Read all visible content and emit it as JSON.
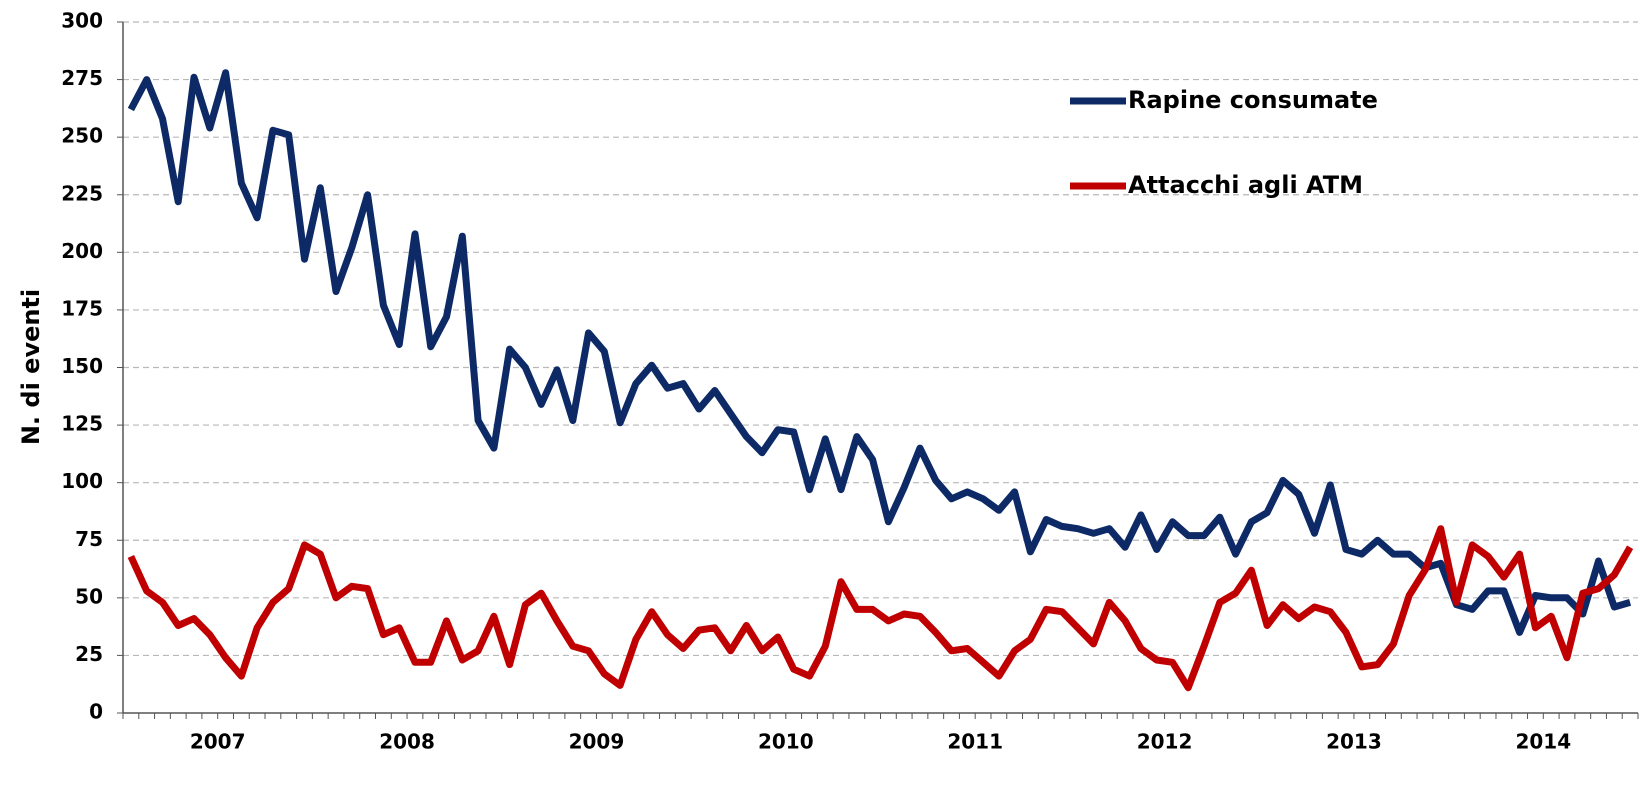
{
  "chart_data": {
    "type": "line",
    "y_label": "N. di eventi",
    "categories": [
      null,
      null,
      null,
      null,
      null,
      null,
      "2007",
      null,
      null,
      null,
      null,
      null,
      null,
      null,
      null,
      null,
      null,
      null,
      "2008",
      null,
      null,
      null,
      null,
      null,
      null,
      null,
      null,
      null,
      null,
      null,
      "2009",
      null,
      null,
      null,
      null,
      null,
      null,
      null,
      null,
      null,
      null,
      null,
      "2010",
      null,
      null,
      null,
      null,
      null,
      null,
      null,
      null,
      null,
      null,
      null,
      "2011",
      null,
      null,
      null,
      null,
      null,
      null,
      null,
      null,
      null,
      null,
      null,
      "2012",
      null,
      null,
      null,
      null,
      null,
      null,
      null,
      null,
      null,
      null,
      null,
      "2013",
      null,
      null,
      null,
      null,
      null,
      null,
      null,
      null,
      null,
      null,
      null,
      "2014",
      null,
      null,
      null,
      null,
      null
    ],
    "series": [
      {
        "name": "Rapine consumate",
        "color": "#0d2a66",
        "values": [
          262,
          275,
          258,
          222,
          276,
          254,
          278,
          230,
          215,
          253,
          251,
          197,
          228,
          183,
          202,
          225,
          177,
          160,
          208,
          159,
          172,
          207,
          127,
          115,
          158,
          150,
          134,
          149,
          127,
          165,
          157,
          126,
          143,
          151,
          141,
          143,
          132,
          140,
          130,
          120,
          113,
          123,
          122,
          97,
          119,
          97,
          120,
          110,
          83,
          98,
          115,
          101,
          93,
          96,
          93,
          88,
          96,
          70,
          84,
          81,
          80,
          78,
          80,
          72,
          86,
          71,
          83,
          77,
          77,
          85,
          69,
          83,
          87,
          101,
          95,
          78,
          99,
          71,
          69,
          75,
          69,
          69,
          63,
          65,
          47,
          45,
          53,
          53,
          35,
          51,
          50,
          50,
          43,
          66,
          46,
          48
        ]
      },
      {
        "name": "Attacchi agli ATM",
        "color": "#c00000",
        "values": [
          68,
          53,
          48,
          38,
          41,
          34,
          24,
          16,
          37,
          48,
          54,
          73,
          69,
          50,
          55,
          54,
          34,
          37,
          22,
          22,
          40,
          23,
          27,
          42,
          21,
          47,
          52,
          40,
          29,
          27,
          17,
          12,
          32,
          44,
          34,
          28,
          36,
          37,
          27,
          38,
          27,
          33,
          19,
          16,
          29,
          57,
          45,
          45,
          40,
          43,
          42,
          35,
          27,
          28,
          22,
          16,
          27,
          32,
          45,
          44,
          37,
          30,
          48,
          40,
          28,
          23,
          22,
          11,
          29,
          48,
          52,
          62,
          38,
          47,
          41,
          46,
          44,
          35,
          20,
          21,
          30,
          51,
          62,
          80,
          48,
          73,
          68,
          59,
          69,
          37,
          42,
          24,
          52,
          54,
          60,
          72
        ]
      }
    ],
    "ylim": [
      0,
      300
    ],
    "yticks": [
      0,
      25,
      50,
      75,
      100,
      125,
      150,
      175,
      200,
      225,
      250,
      275,
      300
    ],
    "grid": true,
    "legend": "upper right"
  }
}
